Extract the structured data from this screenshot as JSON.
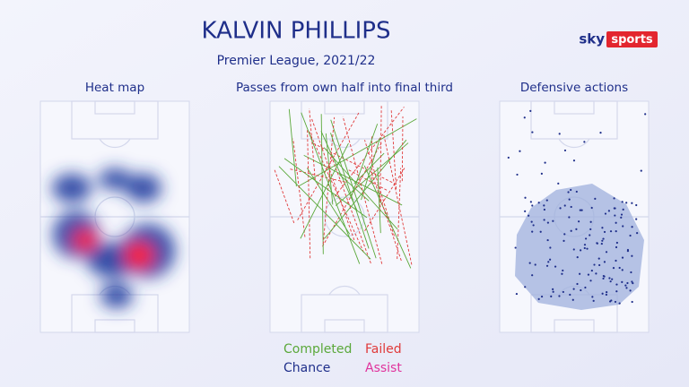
{
  "header": {
    "title": "KALVIN PHILLIPS",
    "subtitle": "Premier League, 2021/22",
    "logo": {
      "sky": "sky",
      "sports": "sports"
    }
  },
  "panels": [
    {
      "title": "Heat map"
    },
    {
      "title": "Passes from own half into final third"
    },
    {
      "title": "Defensive actions"
    }
  ],
  "legend": [
    {
      "label": "Completed",
      "color": "#5aa83a"
    },
    {
      "label": "Failed",
      "color": "#e03a3a"
    },
    {
      "label": "Chance",
      "color": "#1f2f8a"
    },
    {
      "label": "Assist",
      "color": "#e0339c"
    }
  ]
}
